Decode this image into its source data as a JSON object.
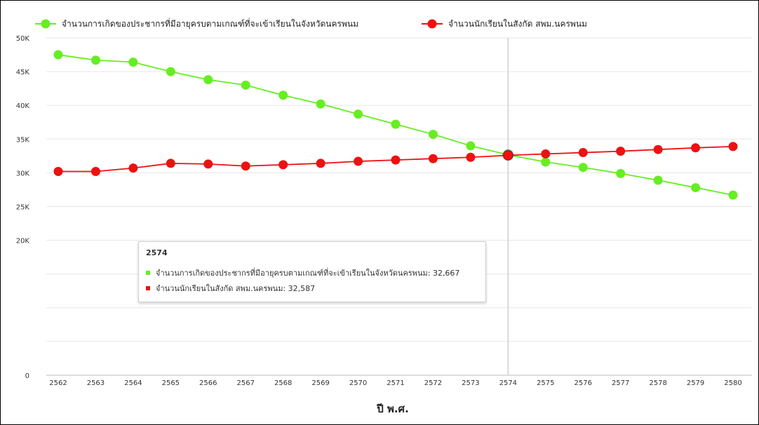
{
  "chart_data": {
    "type": "line",
    "title": "",
    "xlabel": "ปี พ.ศ.",
    "ylabel": "",
    "categories": [
      "2562",
      "2563",
      "2564",
      "2565",
      "2566",
      "2567",
      "2568",
      "2569",
      "2570",
      "2571",
      "2572",
      "2573",
      "2574",
      "2575",
      "2576",
      "2577",
      "2578",
      "2579",
      "2580"
    ],
    "ylim": [
      0,
      50000
    ],
    "yticks": [
      "0",
      "20K",
      "25K",
      "30K",
      "35K",
      "40K",
      "45K",
      "50K"
    ],
    "ytick_values": [
      0,
      20000,
      25000,
      30000,
      35000,
      40000,
      45000,
      50000
    ],
    "grid": true,
    "legend_position": "top-left",
    "series": [
      {
        "name": "จำนวนการเกิดของประชากรที่มีอายุครบตามเกณฑ์ที่จะเข้าเรียนในจังหวัดนครพนม",
        "color": "#66ee22",
        "values": [
          47500,
          46700,
          46400,
          45000,
          43800,
          43000,
          41500,
          40200,
          38700,
          37200,
          35700,
          34000,
          32667,
          31600,
          30800,
          29900,
          28900,
          27800,
          26700
        ]
      },
      {
        "name": "จำนวนนักเรียนในสังกัด สพม.นครพนม",
        "color": "#ee1111",
        "values": [
          30200,
          30200,
          30700,
          31400,
          31300,
          31000,
          31200,
          31400,
          31700,
          31900,
          32100,
          32300,
          32587,
          32800,
          33000,
          33200,
          33450,
          33700,
          33900
        ]
      }
    ],
    "tooltip": {
      "title": "2574",
      "rows": [
        "จำนวนการเกิดของประชากรที่มีอายุครบตามเกณฑ์ที่จะเข้าเรียนในจังหวัดนครพนม: 32,667",
        "จำนวนนักเรียนในสังกัด สพม.นครพนม: 32,587"
      ]
    },
    "highlight_category": "2574"
  }
}
